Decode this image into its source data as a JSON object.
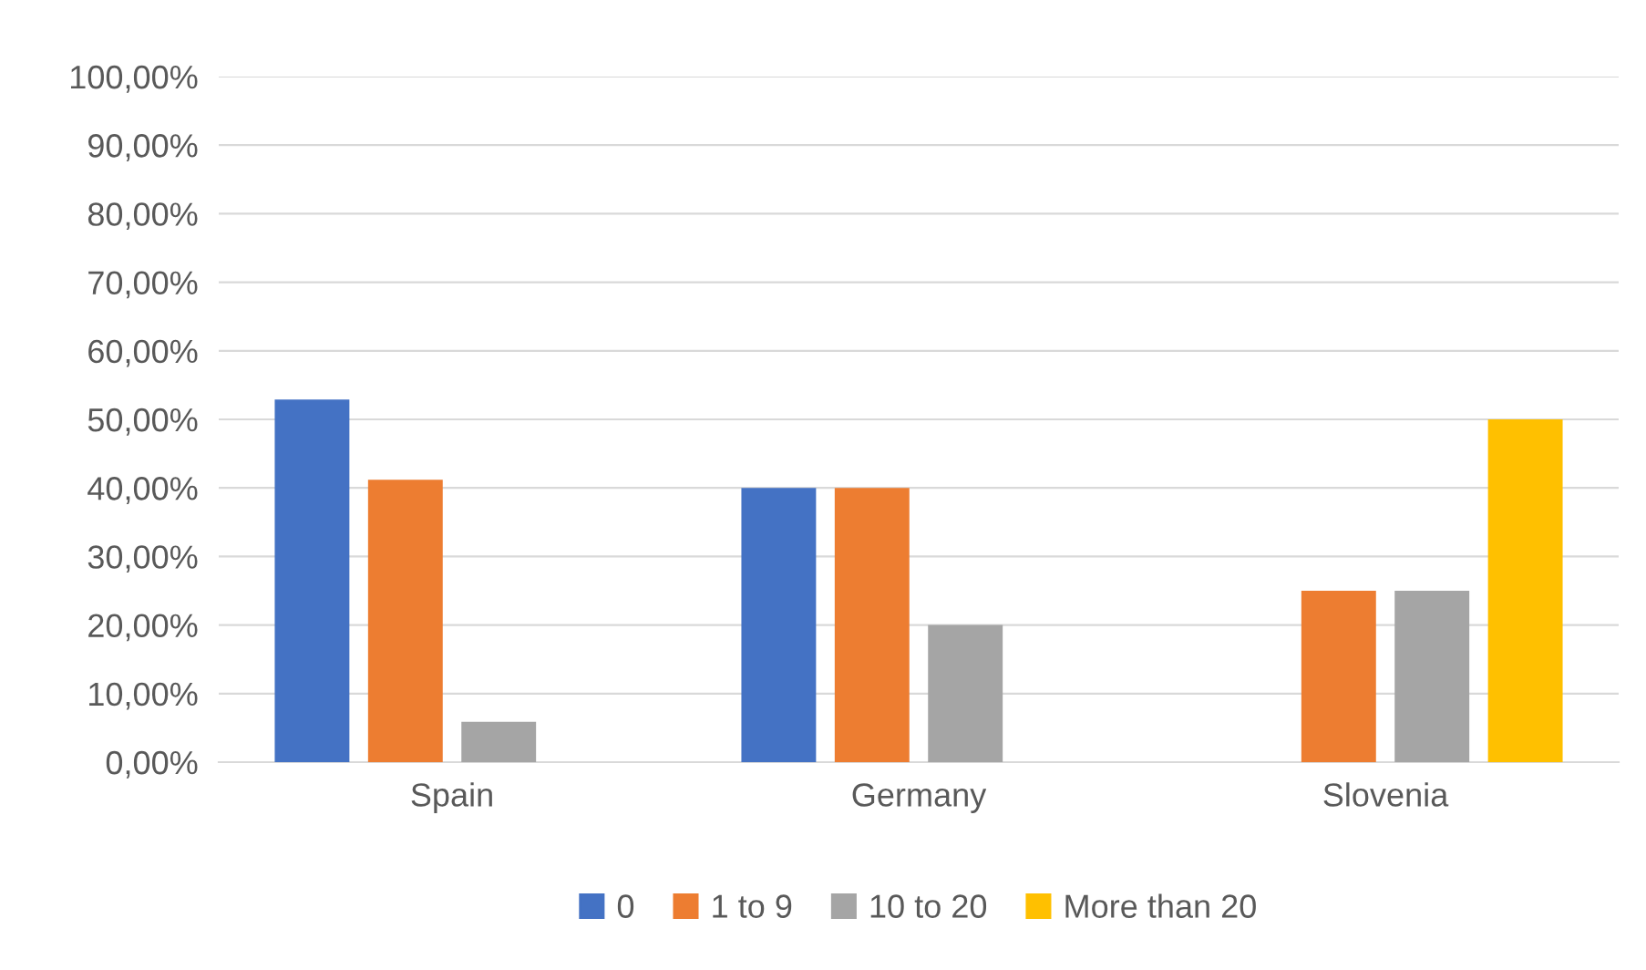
{
  "chart_data": {
    "type": "bar",
    "categories": [
      "Spain",
      "Germany",
      "Slovenia"
    ],
    "series": [
      {
        "name": "0",
        "color": "#4472c4",
        "values": [
          52.9,
          40,
          0
        ]
      },
      {
        "name": "1 to 9",
        "color": "#ed7d31",
        "values": [
          41.2,
          40,
          25
        ]
      },
      {
        "name": "10 to 20",
        "color": "#a5a5a5",
        "values": [
          5.9,
          20,
          25
        ]
      },
      {
        "name": "More than 20",
        "color": "#ffc000",
        "values": [
          0,
          0,
          50
        ]
      }
    ],
    "ylim": [
      0,
      100
    ],
    "yticks": [
      {
        "value": 0,
        "label": "0,00%"
      },
      {
        "value": 10,
        "label": "10,00%"
      },
      {
        "value": 20,
        "label": "20,00%"
      },
      {
        "value": 30,
        "label": "30,00%"
      },
      {
        "value": 40,
        "label": "40,00%"
      },
      {
        "value": 50,
        "label": "50,00%"
      },
      {
        "value": 60,
        "label": "60,00%"
      },
      {
        "value": 70,
        "label": "70,00%"
      },
      {
        "value": 80,
        "label": "80,00%"
      },
      {
        "value": 90,
        "label": "90,00%"
      },
      {
        "value": 100,
        "label": "100,00%"
      }
    ],
    "grid": "y",
    "legend": "bottom"
  }
}
